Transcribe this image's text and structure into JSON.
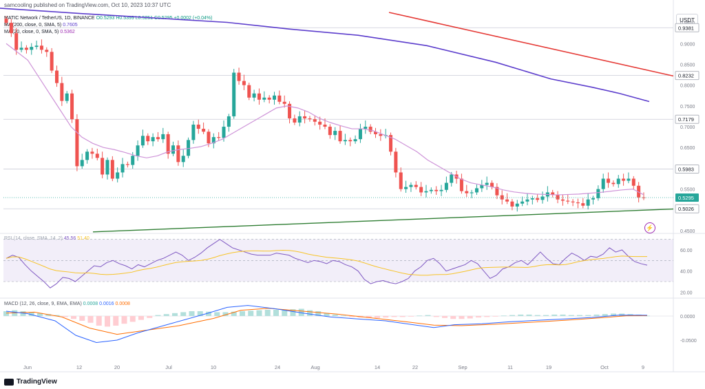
{
  "header": {
    "publish": "samcooling published on TradingView.com, Oct 10, 2023 10:37 UTC",
    "ticker": "MATIC Network / TetherUS, 1D, BINANCE",
    "ohlc": "O0.5293 H0.5399 L0.5251 C0.5295 +0.0002 (+0.04%)",
    "ma200_label": "MA (200, close, 0, SMA, 5)",
    "ma200_value": "0.7605",
    "ma20_label": "MA (20, close, 0, SMA, 5)",
    "ma20_value": "0.5362"
  },
  "currency": "USDT",
  "rsi_label": {
    "name": "RSI (14, close, SMA, 14, 2)",
    "value": "45.56",
    "ma": "51.40"
  },
  "macd_label": {
    "name": "MACD (12, 26, close, 9, EMA, EMA)",
    "hist": "0.0008",
    "macd": "0.0016",
    "signal": "0.0008"
  },
  "brand": "TradingView",
  "colors": {
    "up": "#26a69a",
    "down": "#ef5350",
    "ma20": "#ce93d8",
    "ma200": "#5b3ccc",
    "resistance": "#e53935",
    "support": "#2e7d32",
    "current": "#26a69a"
  },
  "chart_data": {
    "type": "candlestick",
    "x_ticks": [
      "Jun",
      "12",
      "20",
      "Jul",
      "10",
      "24",
      "Aug",
      "14",
      "22",
      "Sep",
      "11",
      "19",
      "Oct",
      "9"
    ],
    "price_ticks": [
      0.95,
      0.9,
      0.85,
      0.8,
      0.75,
      0.7,
      0.65,
      0.6,
      0.55,
      0.5,
      0.45
    ],
    "price_tick_labels": [
      "0.9500",
      "0.9000",
      "0.8500",
      "0.8000",
      "0.7500",
      "0.7000",
      "0.6500",
      "0.6000",
      "0.5500",
      "0.5000",
      "0.4500"
    ],
    "price_range": [
      0.445,
      0.975
    ],
    "level_lines": [
      {
        "value": 0.9381,
        "label": "0.9381"
      },
      {
        "value": 0.8232,
        "label": "0.8232"
      },
      {
        "value": 0.7179,
        "label": "0.7179"
      },
      {
        "value": 0.5983,
        "label": "0.5983"
      },
      {
        "value": 0.5026,
        "label": "0.5026"
      }
    ],
    "current_price": {
      "value": 0.5295,
      "label": "0.5295"
    },
    "closes": [
      0.95,
      0.925,
      0.885,
      0.89,
      0.885,
      0.892,
      0.895,
      0.885,
      0.88,
      0.835,
      0.805,
      0.762,
      0.78,
      0.718,
      0.605,
      0.62,
      0.64,
      0.635,
      0.625,
      0.585,
      0.62,
      0.575,
      0.59,
      0.61,
      0.608,
      0.63,
      0.655,
      0.678,
      0.665,
      0.675,
      0.67,
      0.682,
      0.635,
      0.655,
      0.615,
      0.63,
      0.668,
      0.705,
      0.695,
      0.688,
      0.66,
      0.675,
      0.673,
      0.7,
      0.725,
      0.83,
      0.81,
      0.8,
      0.77,
      0.78,
      0.765,
      0.77,
      0.765,
      0.775,
      0.76,
      0.755,
      0.72,
      0.71,
      0.725,
      0.72,
      0.718,
      0.712,
      0.705,
      0.7,
      0.68,
      0.69,
      0.665,
      0.668,
      0.665,
      0.67,
      0.695,
      0.7,
      0.688,
      0.682,
      0.678,
      0.68,
      0.64,
      0.59,
      0.55,
      0.555,
      0.56,
      0.555,
      0.542,
      0.545,
      0.548,
      0.545,
      0.548,
      0.565,
      0.585,
      0.575,
      0.545,
      0.54,
      0.542,
      0.552,
      0.56,
      0.565,
      0.555,
      0.535,
      0.525,
      0.52,
      0.508,
      0.515,
      0.52,
      0.525,
      0.528,
      0.524,
      0.532,
      0.542,
      0.536,
      0.525,
      0.522,
      0.52,
      0.518,
      0.516,
      0.51,
      0.525,
      0.528,
      0.55,
      0.575,
      0.565,
      0.562,
      0.575,
      0.57,
      0.575,
      0.558,
      0.53,
      0.5295
    ],
    "ma20": [
      0.9,
      0.88,
      0.86,
      0.82,
      0.78,
      0.74,
      0.7,
      0.675,
      0.66,
      0.65,
      0.645,
      0.638,
      0.63,
      0.625,
      0.63,
      0.64,
      0.645,
      0.648,
      0.652,
      0.66,
      0.67,
      0.685,
      0.7,
      0.715,
      0.73,
      0.745,
      0.75,
      0.745,
      0.735,
      0.72,
      0.71,
      0.702,
      0.695,
      0.695,
      0.69,
      0.68,
      0.67,
      0.655,
      0.64,
      0.62,
      0.605,
      0.59,
      0.575,
      0.565,
      0.56,
      0.555,
      0.548,
      0.543,
      0.54,
      0.538,
      0.537,
      0.536,
      0.537,
      0.538,
      0.54,
      0.542,
      0.545,
      0.548,
      0.55,
      0.5362
    ],
    "ma200_points": [
      [
        0,
        0.985
      ],
      [
        120,
        0.972
      ],
      [
        240,
        0.96
      ],
      [
        330,
        0.951
      ],
      [
        420,
        0.935
      ],
      [
        520,
        0.92
      ],
      [
        620,
        0.895
      ],
      [
        720,
        0.855
      ],
      [
        800,
        0.815
      ],
      [
        860,
        0.795
      ],
      [
        900,
        0.78
      ],
      [
        943,
        0.7605
      ]
    ],
    "rsi": {
      "ticks": [
        60.0,
        40.0,
        20.0
      ],
      "tick_labels": [
        "60.00",
        "40.00",
        "20.00"
      ],
      "bands": [
        70,
        30
      ],
      "last": 45.56,
      "ma_last": 51.4
    },
    "macd": {
      "ticks": [
        0.0,
        -0.05
      ],
      "tick_labels": [
        "0.0000",
        "-0.0500"
      ],
      "macd_last": 0.0016,
      "signal_last": 0.0008,
      "hist_last": 0.0008
    }
  }
}
